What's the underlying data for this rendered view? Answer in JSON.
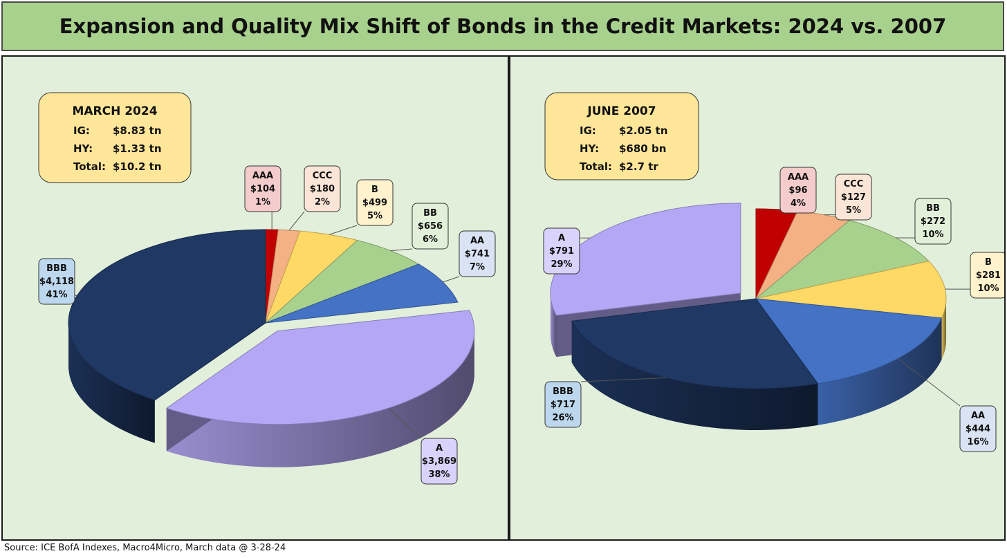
{
  "title": "Expansion and Quality Mix Shift of Bonds in the Credit Markets: 2024 vs. 2007",
  "source": "Source: ICE BofA Indexes, Macro4Micro, March data @ 3-28-24",
  "chart_data": [
    {
      "type": "pie",
      "summary": {
        "heading": "MARCH 2024",
        "rows": [
          {
            "label": "IG:",
            "value": "$8.83 tn"
          },
          {
            "label": "HY:",
            "value": "$1.33 tn"
          },
          {
            "label": "Total:",
            "value": "$10.2 tn"
          }
        ]
      },
      "slices": [
        {
          "name": "AAA",
          "value": 104,
          "value_label": "$104",
          "pct_label": "1%",
          "color": "#c00000",
          "label_bg": "#f4cccc"
        },
        {
          "name": "CCC",
          "value": 180,
          "value_label": "$180",
          "pct_label": "2%",
          "color": "#f4b183",
          "label_bg": "#fbe5d6"
        },
        {
          "name": "B",
          "value": 499,
          "value_label": "$499",
          "pct_label": "5%",
          "color": "#ffd966",
          "label_bg": "#fff2cc"
        },
        {
          "name": "BB",
          "value": 656,
          "value_label": "$656",
          "pct_label": "6%",
          "color": "#a9d18e",
          "label_bg": "#e2f0d9"
        },
        {
          "name": "AA",
          "value": 741,
          "value_label": "$741",
          "pct_label": "7%",
          "color": "#4472c4",
          "label_bg": "#dae3f3"
        },
        {
          "name": "A",
          "value": 3869,
          "value_label": "$3,869",
          "pct_label": "38%",
          "color": "#b4a7f5",
          "label_bg": "#d9d2fb"
        },
        {
          "name": "BBB",
          "value": 4118,
          "value_label": "$4,118",
          "pct_label": "41%",
          "color": "#203864",
          "label_bg": "#bdd7ee"
        }
      ]
    },
    {
      "type": "pie",
      "summary": {
        "heading": "JUNE 2007",
        "rows": [
          {
            "label": "IG:",
            "value": "$2.05 tn"
          },
          {
            "label": "HY:",
            "value": "$680 bn"
          },
          {
            "label": "Total:",
            "value": "$2.7 tr"
          }
        ]
      },
      "slices": [
        {
          "name": "AAA",
          "value": 96,
          "value_label": "$96",
          "pct_label": "4%",
          "color": "#c00000",
          "label_bg": "#f4cccc"
        },
        {
          "name": "CCC",
          "value": 127,
          "value_label": "$127",
          "pct_label": "5%",
          "color": "#f4b183",
          "label_bg": "#fbe5d6"
        },
        {
          "name": "BB",
          "value": 272,
          "value_label": "$272",
          "pct_label": "10%",
          "color": "#a9d18e",
          "label_bg": "#e2f0d9"
        },
        {
          "name": "B",
          "value": 281,
          "value_label": "$281",
          "pct_label": "10%",
          "color": "#ffd966",
          "label_bg": "#fff2cc"
        },
        {
          "name": "AA",
          "value": 444,
          "value_label": "$444",
          "pct_label": "16%",
          "color": "#4472c4",
          "label_bg": "#dae3f3"
        },
        {
          "name": "BBB",
          "value": 717,
          "value_label": "$717",
          "pct_label": "26%",
          "color": "#203864",
          "label_bg": "#bdd7ee"
        },
        {
          "name": "A",
          "value": 791,
          "value_label": "$791",
          "pct_label": "29%",
          "color": "#b4a7f5",
          "label_bg": "#d9d2fb"
        }
      ]
    }
  ]
}
